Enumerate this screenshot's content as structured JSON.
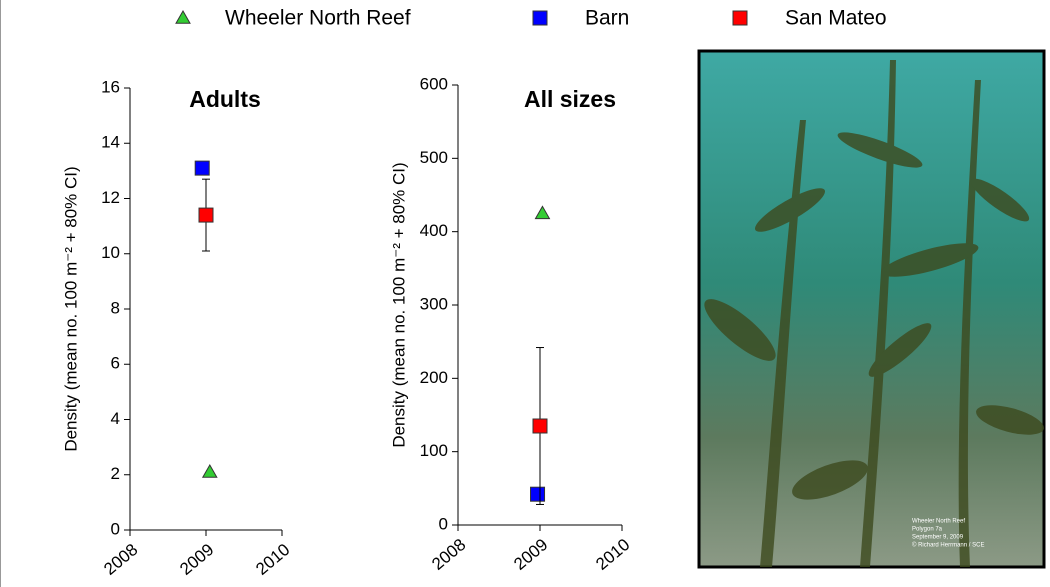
{
  "chart_data": [
    {
      "type": "scatter",
      "title": "Adults",
      "y_label": "Density (mean no. 100 m⁻² + 80% CI)",
      "xlim": [
        2008,
        2010
      ],
      "xticks": [
        2008,
        2009,
        2010
      ],
      "ylim": [
        0,
        16
      ],
      "yticks": [
        0,
        2,
        4,
        6,
        8,
        10,
        12,
        14,
        16
      ],
      "series": [
        {
          "name": "Wheeler North Reef",
          "color": "#33cc33",
          "marker": "triangle",
          "x": [
            2009.05
          ],
          "values": [
            2.1
          ]
        },
        {
          "name": "Barn",
          "color": "#0000ff",
          "marker": "square",
          "x": [
            2008.95
          ],
          "values": [
            13.1
          ]
        },
        {
          "name": "San Mateo",
          "color": "#ff0000",
          "marker": "square",
          "x": [
            2009
          ],
          "values": [
            11.4
          ],
          "errors": [
            1.3
          ]
        }
      ]
    },
    {
      "type": "scatter",
      "title": "All sizes",
      "y_label": "Density (mean no. 100 m⁻² + 80% CI)",
      "xlim": [
        2008,
        2010
      ],
      "xticks": [
        2008,
        2009,
        2010
      ],
      "ylim": [
        0,
        600
      ],
      "yticks": [
        0,
        100,
        200,
        300,
        400,
        500,
        600
      ],
      "series": [
        {
          "name": "Wheeler North Reef",
          "color": "#33cc33",
          "marker": "triangle",
          "x": [
            2009.03
          ],
          "values": [
            425
          ]
        },
        {
          "name": "Barn",
          "color": "#0000ff",
          "marker": "square",
          "x": [
            2008.97
          ],
          "values": [
            42
          ]
        },
        {
          "name": "San Mateo",
          "color": "#ff0000",
          "marker": "square",
          "x": [
            2009
          ],
          "values": [
            135
          ],
          "errors": [
            107
          ]
        }
      ]
    }
  ],
  "photo": {
    "caption": [
      "Wheeler North Reef",
      "Polygon 7a",
      "September 9, 2009",
      "© Richard Herrmann / SCE"
    ]
  }
}
